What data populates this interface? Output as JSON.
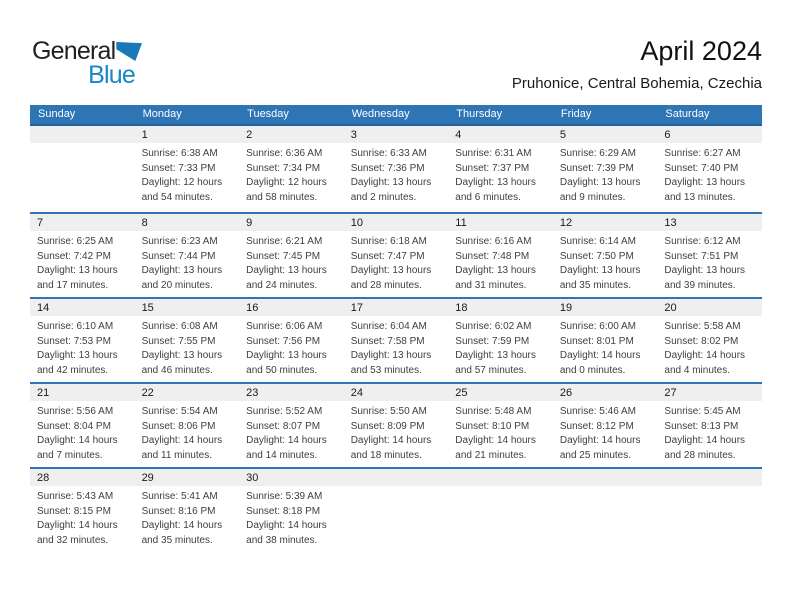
{
  "logo": {
    "text_dark": "General",
    "text_blue": "Blue"
  },
  "header": {
    "title": "April 2024",
    "subtitle": "Pruhonice, Central Bohemia, Czechia"
  },
  "weekday_headers": [
    "Sunday",
    "Monday",
    "Tuesday",
    "Wednesday",
    "Thursday",
    "Friday",
    "Saturday"
  ],
  "colors": {
    "header_bg": "#2e75b5",
    "week_divider": "#2e75b5",
    "day_band_bg": "#efefef",
    "detail_text": "#404040",
    "logo_blue": "#1787c9",
    "logo_triangle": "#1878b8"
  },
  "weeks": [
    [
      {
        "day": "",
        "lines": []
      },
      {
        "day": "1",
        "lines": [
          "Sunrise: 6:38 AM",
          "Sunset: 7:33 PM",
          "Daylight: 12 hours",
          "and 54 minutes."
        ]
      },
      {
        "day": "2",
        "lines": [
          "Sunrise: 6:36 AM",
          "Sunset: 7:34 PM",
          "Daylight: 12 hours",
          "and 58 minutes."
        ]
      },
      {
        "day": "3",
        "lines": [
          "Sunrise: 6:33 AM",
          "Sunset: 7:36 PM",
          "Daylight: 13 hours",
          "and 2 minutes."
        ]
      },
      {
        "day": "4",
        "lines": [
          "Sunrise: 6:31 AM",
          "Sunset: 7:37 PM",
          "Daylight: 13 hours",
          "and 6 minutes."
        ]
      },
      {
        "day": "5",
        "lines": [
          "Sunrise: 6:29 AM",
          "Sunset: 7:39 PM",
          "Daylight: 13 hours",
          "and 9 minutes."
        ]
      },
      {
        "day": "6",
        "lines": [
          "Sunrise: 6:27 AM",
          "Sunset: 7:40 PM",
          "Daylight: 13 hours",
          "and 13 minutes."
        ]
      }
    ],
    [
      {
        "day": "7",
        "lines": [
          "Sunrise: 6:25 AM",
          "Sunset: 7:42 PM",
          "Daylight: 13 hours",
          "and 17 minutes."
        ]
      },
      {
        "day": "8",
        "lines": [
          "Sunrise: 6:23 AM",
          "Sunset: 7:44 PM",
          "Daylight: 13 hours",
          "and 20 minutes."
        ]
      },
      {
        "day": "9",
        "lines": [
          "Sunrise: 6:21 AM",
          "Sunset: 7:45 PM",
          "Daylight: 13 hours",
          "and 24 minutes."
        ]
      },
      {
        "day": "10",
        "lines": [
          "Sunrise: 6:18 AM",
          "Sunset: 7:47 PM",
          "Daylight: 13 hours",
          "and 28 minutes."
        ]
      },
      {
        "day": "11",
        "lines": [
          "Sunrise: 6:16 AM",
          "Sunset: 7:48 PM",
          "Daylight: 13 hours",
          "and 31 minutes."
        ]
      },
      {
        "day": "12",
        "lines": [
          "Sunrise: 6:14 AM",
          "Sunset: 7:50 PM",
          "Daylight: 13 hours",
          "and 35 minutes."
        ]
      },
      {
        "day": "13",
        "lines": [
          "Sunrise: 6:12 AM",
          "Sunset: 7:51 PM",
          "Daylight: 13 hours",
          "and 39 minutes."
        ]
      }
    ],
    [
      {
        "day": "14",
        "lines": [
          "Sunrise: 6:10 AM",
          "Sunset: 7:53 PM",
          "Daylight: 13 hours",
          "and 42 minutes."
        ]
      },
      {
        "day": "15",
        "lines": [
          "Sunrise: 6:08 AM",
          "Sunset: 7:55 PM",
          "Daylight: 13 hours",
          "and 46 minutes."
        ]
      },
      {
        "day": "16",
        "lines": [
          "Sunrise: 6:06 AM",
          "Sunset: 7:56 PM",
          "Daylight: 13 hours",
          "and 50 minutes."
        ]
      },
      {
        "day": "17",
        "lines": [
          "Sunrise: 6:04 AM",
          "Sunset: 7:58 PM",
          "Daylight: 13 hours",
          "and 53 minutes."
        ]
      },
      {
        "day": "18",
        "lines": [
          "Sunrise: 6:02 AM",
          "Sunset: 7:59 PM",
          "Daylight: 13 hours",
          "and 57 minutes."
        ]
      },
      {
        "day": "19",
        "lines": [
          "Sunrise: 6:00 AM",
          "Sunset: 8:01 PM",
          "Daylight: 14 hours",
          "and 0 minutes."
        ]
      },
      {
        "day": "20",
        "lines": [
          "Sunrise: 5:58 AM",
          "Sunset: 8:02 PM",
          "Daylight: 14 hours",
          "and 4 minutes."
        ]
      }
    ],
    [
      {
        "day": "21",
        "lines": [
          "Sunrise: 5:56 AM",
          "Sunset: 8:04 PM",
          "Daylight: 14 hours",
          "and 7 minutes."
        ]
      },
      {
        "day": "22",
        "lines": [
          "Sunrise: 5:54 AM",
          "Sunset: 8:06 PM",
          "Daylight: 14 hours",
          "and 11 minutes."
        ]
      },
      {
        "day": "23",
        "lines": [
          "Sunrise: 5:52 AM",
          "Sunset: 8:07 PM",
          "Daylight: 14 hours",
          "and 14 minutes."
        ]
      },
      {
        "day": "24",
        "lines": [
          "Sunrise: 5:50 AM",
          "Sunset: 8:09 PM",
          "Daylight: 14 hours",
          "and 18 minutes."
        ]
      },
      {
        "day": "25",
        "lines": [
          "Sunrise: 5:48 AM",
          "Sunset: 8:10 PM",
          "Daylight: 14 hours",
          "and 21 minutes."
        ]
      },
      {
        "day": "26",
        "lines": [
          "Sunrise: 5:46 AM",
          "Sunset: 8:12 PM",
          "Daylight: 14 hours",
          "and 25 minutes."
        ]
      },
      {
        "day": "27",
        "lines": [
          "Sunrise: 5:45 AM",
          "Sunset: 8:13 PM",
          "Daylight: 14 hours",
          "and 28 minutes."
        ]
      }
    ],
    [
      {
        "day": "28",
        "lines": [
          "Sunrise: 5:43 AM",
          "Sunset: 8:15 PM",
          "Daylight: 14 hours",
          "and 32 minutes."
        ]
      },
      {
        "day": "29",
        "lines": [
          "Sunrise: 5:41 AM",
          "Sunset: 8:16 PM",
          "Daylight: 14 hours",
          "and 35 minutes."
        ]
      },
      {
        "day": "30",
        "lines": [
          "Sunrise: 5:39 AM",
          "Sunset: 8:18 PM",
          "Daylight: 14 hours",
          "and 38 minutes."
        ]
      },
      {
        "day": "",
        "lines": []
      },
      {
        "day": "",
        "lines": []
      },
      {
        "day": "",
        "lines": []
      },
      {
        "day": "",
        "lines": []
      }
    ]
  ]
}
